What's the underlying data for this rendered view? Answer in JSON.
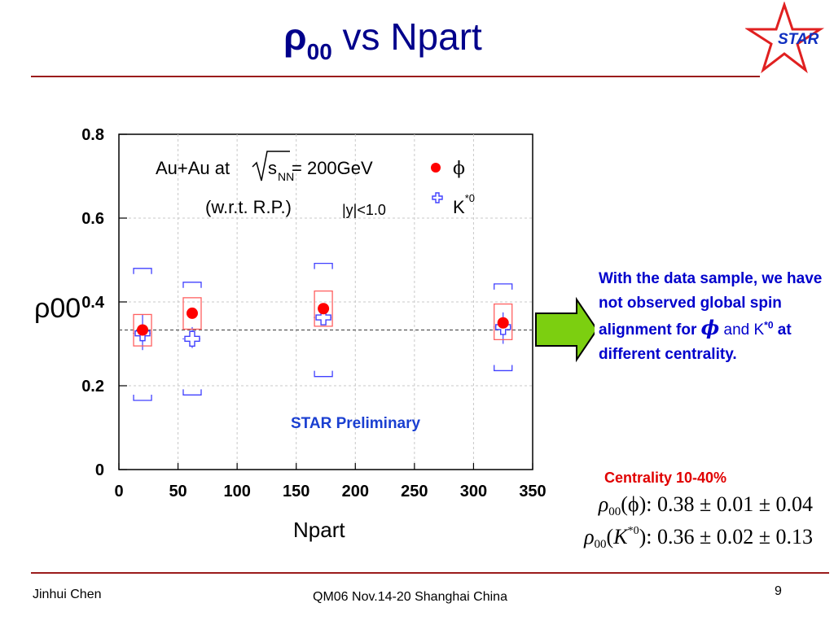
{
  "slide": {
    "title_symbol": "ρ",
    "title_subscript": "00",
    "title_rest": " vs Npart",
    "logo_text": "STAR",
    "footer_left": "Jinhui Chen",
    "footer_center": "QM06 Nov.14-20 Shanghai China",
    "page_number": "9"
  },
  "note": {
    "line1": "With the data sample, we have not observed global spin alignment for ",
    "phi": "ϕ",
    "and": " and ",
    "kstar_base": "K",
    "kstar_sup": "*0",
    "line2": " at different centrality."
  },
  "results": {
    "centrality": "Centrality 10-40%",
    "phi_formula": {
      "rho": "ρ",
      "sub": "00",
      "particle": "(ϕ)",
      "value": ": 0.38 ± 0.01 ± 0.04"
    },
    "kstar_formula": {
      "rho": "ρ",
      "sub": "00",
      "open": "(",
      "particle": "K",
      "sup": "*0",
      "close": ")",
      "value": ": 0.36 ± 0.02 ± 0.13"
    }
  },
  "chart_data": {
    "type": "scatter",
    "title": "",
    "xlabel": "Npart",
    "ylabel": "ρ00",
    "xlim": [
      0,
      350
    ],
    "ylim": [
      0,
      0.8
    ],
    "xticks": [
      "0",
      "50",
      "100",
      "150",
      "200",
      "250",
      "300",
      "350"
    ],
    "yticks": [
      "0",
      "0.2",
      "0.4",
      "0.6",
      "0.8"
    ],
    "reference_line": {
      "y": 0.333,
      "style": "dashed"
    },
    "annotations": {
      "system": "Au+Au at",
      "sqrt_s": "s",
      "sqrt_sub": "NN",
      "energy": " = 200GeV",
      "frame": "(w.r.t. R.P.)",
      "rapidity": "|y|<1.0",
      "preliminary": "STAR Preliminary"
    },
    "legend": [
      {
        "label": "ϕ",
        "marker": "filled-circle",
        "color": "#ff0000"
      },
      {
        "label_base": "K",
        "label_sup": "*0",
        "marker": "open-cross",
        "color": "#4040ff"
      }
    ],
    "series": [
      {
        "name": "ϕ",
        "color": "#ff0000",
        "points": [
          {
            "x": 20,
            "y": 0.333,
            "sys_low": 0.295,
            "sys_high": 0.37
          },
          {
            "x": 62,
            "y": 0.373,
            "sys_low": 0.335,
            "sys_high": 0.41
          },
          {
            "x": 173,
            "y": 0.384,
            "sys_low": 0.342,
            "sys_high": 0.426
          },
          {
            "x": 325,
            "y": 0.35,
            "sys_low": 0.31,
            "sys_high": 0.395
          }
        ]
      },
      {
        "name": "K*0",
        "color": "#4040ff",
        "points": [
          {
            "x": 20,
            "y": 0.325,
            "err_low": 0.285,
            "err_high": 0.37,
            "sys_low": 0.165,
            "sys_high": 0.48
          },
          {
            "x": 62,
            "y": 0.312,
            "err_low": 0.29,
            "err_high": 0.34,
            "sys_low": 0.178,
            "sys_high": 0.447
          },
          {
            "x": 173,
            "y": 0.363,
            "err_low": 0.345,
            "err_high": 0.385,
            "sys_low": 0.222,
            "sys_high": 0.492
          },
          {
            "x": 325,
            "y": 0.34,
            "err_low": 0.3,
            "err_high": 0.375,
            "sys_low": 0.236,
            "sys_high": 0.443
          }
        ]
      }
    ]
  }
}
